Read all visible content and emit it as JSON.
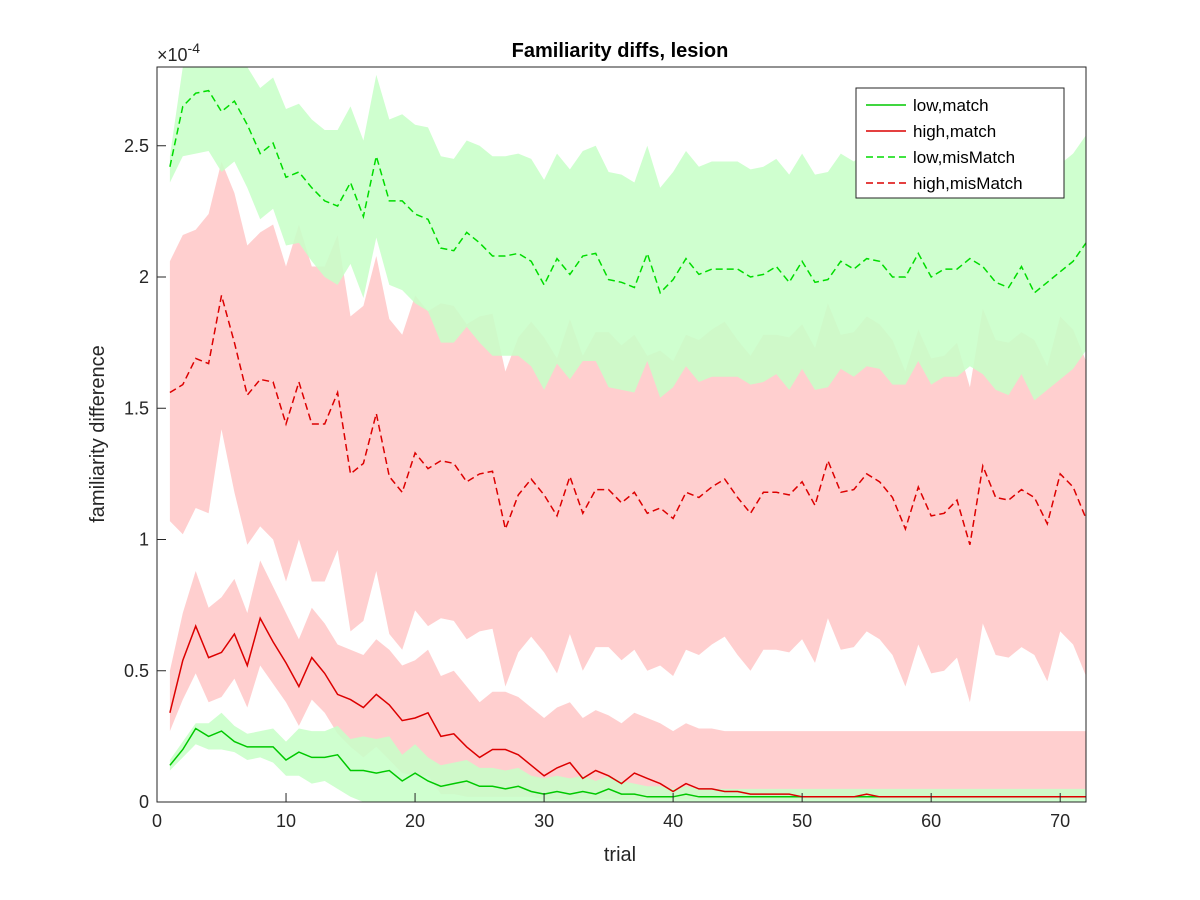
{
  "chart_data": {
    "type": "line",
    "title": "Familiarity diffs, lesion",
    "xlabel": "trial",
    "ylabel": "familiarity difference",
    "y_multiplier_label": "×10",
    "y_multiplier_exponent": "-4",
    "xlim": [
      0,
      72
    ],
    "ylim": [
      0,
      2.8
    ],
    "x_ticks": [
      0,
      10,
      20,
      30,
      40,
      50,
      60,
      70
    ],
    "x_tick_labels": [
      "0",
      "10",
      "20",
      "30",
      "40",
      "50",
      "60",
      "70"
    ],
    "y_ticks": [
      0,
      0.5,
      1,
      1.5,
      2,
      2.5
    ],
    "y_tick_labels": [
      "0",
      "0.5",
      "1",
      "1.5",
      "2",
      "2.5"
    ],
    "legend_position": "top-right",
    "x": [
      1,
      2,
      3,
      4,
      5,
      6,
      7,
      8,
      9,
      10,
      11,
      12,
      13,
      14,
      15,
      16,
      17,
      18,
      19,
      20,
      21,
      22,
      23,
      24,
      25,
      26,
      27,
      28,
      29,
      30,
      31,
      32,
      33,
      34,
      35,
      36,
      37,
      38,
      39,
      40,
      41,
      42,
      43,
      44,
      45,
      46,
      47,
      48,
      49,
      50,
      51,
      52,
      53,
      54,
      55,
      56,
      57,
      58,
      59,
      60,
      61,
      62,
      63,
      64,
      65,
      66,
      67,
      68,
      69,
      70,
      71,
      72
    ],
    "series": [
      {
        "name": "low,match",
        "color": "#00c800",
        "dash": "solid",
        "band_color": "#c8ffc8",
        "values": [
          0.14,
          0.2,
          0.28,
          0.25,
          0.27,
          0.23,
          0.21,
          0.21,
          0.21,
          0.16,
          0.19,
          0.17,
          0.17,
          0.18,
          0.12,
          0.12,
          0.11,
          0.12,
          0.08,
          0.11,
          0.08,
          0.06,
          0.07,
          0.08,
          0.06,
          0.06,
          0.05,
          0.06,
          0.04,
          0.03,
          0.04,
          0.03,
          0.04,
          0.03,
          0.05,
          0.03,
          0.03,
          0.02,
          0.02,
          0.02,
          0.03,
          0.02,
          0.02,
          0.02,
          0.02,
          0.02,
          0.02,
          0.02,
          0.02,
          0.02,
          0.02,
          0.02,
          0.02,
          0.02,
          0.02,
          0.02,
          0.02,
          0.02,
          0.02,
          0.02,
          0.02,
          0.02,
          0.02,
          0.02,
          0.02,
          0.02,
          0.02,
          0.02,
          0.02,
          0.02,
          0.02,
          0.02
        ],
        "lower": [
          0.12,
          0.17,
          0.22,
          0.2,
          0.2,
          0.19,
          0.16,
          0.17,
          0.15,
          0.1,
          0.1,
          0.07,
          0.08,
          0.05,
          0.02,
          0,
          0,
          0,
          0,
          0,
          0,
          0,
          0,
          0,
          0,
          0,
          0,
          0,
          0,
          0,
          0,
          0,
          0,
          0,
          0,
          0,
          0,
          0,
          0,
          0,
          0,
          0,
          0,
          0,
          0,
          0,
          0,
          0,
          0,
          0,
          0,
          0,
          0,
          0,
          0,
          0,
          0,
          0,
          0,
          0,
          0,
          0,
          0,
          0,
          0,
          0,
          0,
          0,
          0,
          0,
          0,
          0
        ],
        "upper": [
          0.16,
          0.23,
          0.3,
          0.3,
          0.34,
          0.29,
          0.26,
          0.27,
          0.28,
          0.23,
          0.28,
          0.27,
          0.27,
          0.29,
          0.24,
          0.25,
          0.24,
          0.25,
          0.18,
          0.22,
          0.17,
          0.14,
          0.15,
          0.16,
          0.13,
          0.13,
          0.12,
          0.13,
          0.1,
          0.09,
          0.1,
          0.09,
          0.1,
          0.08,
          0.1,
          0.08,
          0.07,
          0.06,
          0.06,
          0.05,
          0.06,
          0.05,
          0.05,
          0.05,
          0.05,
          0.05,
          0.05,
          0.05,
          0.05,
          0.05,
          0.05,
          0.05,
          0.05,
          0.05,
          0.05,
          0.05,
          0.05,
          0.05,
          0.05,
          0.05,
          0.05,
          0.05,
          0.05,
          0.05,
          0.05,
          0.05,
          0.05,
          0.05,
          0.05,
          0.05,
          0.05,
          0.05
        ]
      },
      {
        "name": "high,match",
        "color": "#dc0000",
        "dash": "solid",
        "band_color": "#ffc8c8",
        "values": [
          0.34,
          0.54,
          0.67,
          0.55,
          0.57,
          0.64,
          0.52,
          0.7,
          0.61,
          0.53,
          0.44,
          0.55,
          0.49,
          0.41,
          0.39,
          0.36,
          0.41,
          0.37,
          0.31,
          0.32,
          0.34,
          0.25,
          0.26,
          0.21,
          0.17,
          0.2,
          0.2,
          0.18,
          0.14,
          0.1,
          0.13,
          0.15,
          0.09,
          0.12,
          0.1,
          0.07,
          0.11,
          0.09,
          0.07,
          0.04,
          0.07,
          0.05,
          0.05,
          0.04,
          0.04,
          0.03,
          0.03,
          0.03,
          0.03,
          0.02,
          0.02,
          0.02,
          0.02,
          0.02,
          0.03,
          0.02,
          0.02,
          0.02,
          0.02,
          0.02,
          0.02,
          0.02,
          0.02,
          0.02,
          0.02,
          0.02,
          0.02,
          0.02,
          0.02,
          0.02,
          0.02,
          0.02
        ],
        "lower": [
          0.27,
          0.39,
          0.49,
          0.38,
          0.4,
          0.47,
          0.36,
          0.52,
          0.45,
          0.38,
          0.29,
          0.39,
          0.34,
          0.26,
          0.21,
          0.17,
          0.21,
          0.16,
          0.11,
          0.1,
          0.1,
          0.03,
          0.03,
          0.02,
          0.02,
          0.02,
          0.02,
          0.02,
          0.02,
          0.01,
          0.01,
          0.01,
          0.01,
          0.01,
          0.01,
          0.01,
          0.01,
          0.01,
          0.01,
          0.01,
          0.01,
          0.01,
          0.01,
          0.01,
          0.01,
          0.01,
          0.01,
          0.01,
          0.01,
          0.01,
          0.01,
          0.01,
          0.01,
          0.01,
          0.01,
          0.01,
          0.01,
          0.01,
          0.01,
          0.01,
          0.01,
          0.01,
          0.01,
          0.01,
          0.01,
          0.01,
          0.01,
          0.01,
          0.01,
          0.01,
          0.01,
          0.01
        ],
        "upper": [
          0.5,
          0.72,
          0.88,
          0.74,
          0.78,
          0.85,
          0.72,
          0.92,
          0.82,
          0.72,
          0.62,
          0.74,
          0.68,
          0.6,
          0.58,
          0.56,
          0.62,
          0.58,
          0.52,
          0.54,
          0.58,
          0.48,
          0.5,
          0.44,
          0.38,
          0.42,
          0.42,
          0.4,
          0.36,
          0.32,
          0.36,
          0.38,
          0.32,
          0.35,
          0.33,
          0.3,
          0.34,
          0.32,
          0.3,
          0.27,
          0.3,
          0.28,
          0.28,
          0.27,
          0.27,
          0.27,
          0.27,
          0.27,
          0.27,
          0.27,
          0.27,
          0.27,
          0.27,
          0.27,
          0.27,
          0.27,
          0.27,
          0.27,
          0.27,
          0.27,
          0.27,
          0.27,
          0.27,
          0.27,
          0.27,
          0.27,
          0.27,
          0.27,
          0.27,
          0.27,
          0.27,
          0.27
        ]
      },
      {
        "name": "low,misMatch",
        "color": "#00dc00",
        "dash": "dashed",
        "band_color": "#c8ffc8",
        "values": [
          2.42,
          2.65,
          2.7,
          2.71,
          2.63,
          2.67,
          2.58,
          2.47,
          2.51,
          2.38,
          2.4,
          2.34,
          2.29,
          2.27,
          2.36,
          2.23,
          2.46,
          2.29,
          2.29,
          2.24,
          2.22,
          2.11,
          2.1,
          2.17,
          2.13,
          2.08,
          2.08,
          2.09,
          2.06,
          1.97,
          2.07,
          2.01,
          2.08,
          2.09,
          1.99,
          1.98,
          1.96,
          2.09,
          1.94,
          1.99,
          2.07,
          2.01,
          2.03,
          2.03,
          2.03,
          2.0,
          2.01,
          2.04,
          1.98,
          2.06,
          1.98,
          1.99,
          2.06,
          2.03,
          2.07,
          2.06,
          2.0,
          2.0,
          2.09,
          2.0,
          2.03,
          2.03,
          2.07,
          2.04,
          1.98,
          1.96,
          2.04,
          1.94,
          1.98,
          2.02,
          2.06,
          2.13
        ],
        "lower": [
          2.36,
          2.46,
          2.47,
          2.48,
          2.4,
          2.44,
          2.34,
          2.22,
          2.26,
          2.12,
          2.13,
          2.06,
          2.0,
          1.97,
          2.05,
          1.92,
          2.15,
          1.97,
          1.95,
          1.9,
          1.87,
          1.75,
          1.75,
          1.81,
          1.75,
          1.7,
          1.7,
          1.7,
          1.66,
          1.57,
          1.67,
          1.61,
          1.68,
          1.68,
          1.58,
          1.57,
          1.56,
          1.68,
          1.54,
          1.58,
          1.66,
          1.6,
          1.62,
          1.62,
          1.62,
          1.59,
          1.6,
          1.63,
          1.57,
          1.65,
          1.57,
          1.58,
          1.65,
          1.62,
          1.66,
          1.65,
          1.59,
          1.59,
          1.68,
          1.59,
          1.62,
          1.62,
          1.66,
          1.63,
          1.57,
          1.55,
          1.63,
          1.53,
          1.57,
          1.61,
          1.65,
          1.72
        ],
        "upper": [
          2.46,
          2.8,
          2.8,
          2.8,
          2.8,
          2.8,
          2.8,
          2.72,
          2.76,
          2.64,
          2.66,
          2.6,
          2.56,
          2.56,
          2.65,
          2.52,
          2.77,
          2.6,
          2.62,
          2.58,
          2.57,
          2.46,
          2.45,
          2.52,
          2.5,
          2.46,
          2.46,
          2.47,
          2.45,
          2.37,
          2.47,
          2.41,
          2.48,
          2.5,
          2.4,
          2.39,
          2.36,
          2.5,
          2.34,
          2.4,
          2.48,
          2.42,
          2.44,
          2.44,
          2.44,
          2.41,
          2.42,
          2.45,
          2.39,
          2.47,
          2.39,
          2.4,
          2.47,
          2.44,
          2.48,
          2.47,
          2.41,
          2.41,
          2.5,
          2.41,
          2.44,
          2.44,
          2.48,
          2.45,
          2.39,
          2.37,
          2.45,
          2.35,
          2.39,
          2.43,
          2.47,
          2.54
        ]
      },
      {
        "name": "high,misMatch",
        "color": "#dc0000",
        "dash": "dashed",
        "band_color": "#ffc8c8",
        "values": [
          1.56,
          1.59,
          1.69,
          1.67,
          1.93,
          1.75,
          1.55,
          1.61,
          1.6,
          1.44,
          1.6,
          1.44,
          1.44,
          1.56,
          1.25,
          1.29,
          1.48,
          1.24,
          1.18,
          1.33,
          1.27,
          1.3,
          1.29,
          1.22,
          1.25,
          1.26,
          1.04,
          1.17,
          1.23,
          1.17,
          1.09,
          1.24,
          1.1,
          1.19,
          1.19,
          1.14,
          1.18,
          1.1,
          1.12,
          1.08,
          1.18,
          1.16,
          1.2,
          1.23,
          1.16,
          1.1,
          1.18,
          1.18,
          1.17,
          1.22,
          1.13,
          1.3,
          1.18,
          1.19,
          1.25,
          1.22,
          1.16,
          1.04,
          1.2,
          1.09,
          1.1,
          1.15,
          0.98,
          1.28,
          1.16,
          1.15,
          1.19,
          1.16,
          1.06,
          1.25,
          1.2,
          1.08
        ],
        "lower": [
          1.07,
          1.02,
          1.12,
          1.1,
          1.42,
          1.18,
          0.98,
          1.05,
          1.0,
          0.84,
          1.0,
          0.84,
          0.84,
          0.96,
          0.65,
          0.69,
          0.88,
          0.64,
          0.58,
          0.73,
          0.67,
          0.7,
          0.69,
          0.62,
          0.65,
          0.66,
          0.44,
          0.57,
          0.63,
          0.57,
          0.49,
          0.64,
          0.5,
          0.59,
          0.59,
          0.54,
          0.58,
          0.5,
          0.52,
          0.48,
          0.58,
          0.56,
          0.6,
          0.63,
          0.56,
          0.5,
          0.58,
          0.58,
          0.57,
          0.62,
          0.53,
          0.7,
          0.58,
          0.59,
          0.65,
          0.62,
          0.56,
          0.44,
          0.6,
          0.49,
          0.5,
          0.55,
          0.38,
          0.68,
          0.56,
          0.55,
          0.59,
          0.56,
          0.46,
          0.65,
          0.6,
          0.48
        ],
        "upper": [
          2.06,
          2.16,
          2.18,
          2.24,
          2.44,
          2.32,
          2.12,
          2.17,
          2.2,
          2.04,
          2.2,
          2.04,
          2.04,
          2.16,
          1.85,
          1.89,
          2.08,
          1.84,
          1.78,
          1.93,
          1.87,
          1.9,
          1.89,
          1.82,
          1.85,
          1.86,
          1.64,
          1.77,
          1.83,
          1.77,
          1.69,
          1.84,
          1.7,
          1.79,
          1.79,
          1.74,
          1.78,
          1.7,
          1.72,
          1.68,
          1.78,
          1.76,
          1.8,
          1.83,
          1.76,
          1.7,
          1.78,
          1.78,
          1.77,
          1.82,
          1.73,
          1.9,
          1.78,
          1.79,
          1.85,
          1.82,
          1.76,
          1.64,
          1.8,
          1.69,
          1.7,
          1.75,
          1.58,
          1.88,
          1.76,
          1.75,
          1.79,
          1.76,
          1.66,
          1.85,
          1.8,
          1.68
        ]
      }
    ]
  }
}
